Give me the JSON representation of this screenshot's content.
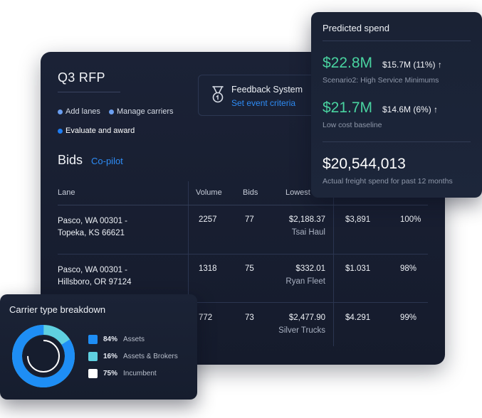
{
  "rfp": {
    "title": "Q3 RFP",
    "steps": [
      "Add lanes",
      "Manage carriers",
      "Evaluate and award"
    ]
  },
  "feedback": {
    "title": "Feedback System",
    "link": "Set event criteria",
    "icon": "medal-icon"
  },
  "bids": {
    "title": "Bids",
    "copilot": "Co-pilot",
    "columns": [
      "Lane",
      "Volume",
      "Bids",
      "Lowest"
    ],
    "rows": [
      {
        "lane1": "Pasco, WA 00301 -",
        "lane2": "Topeka, KS 66621",
        "volume": "2257",
        "bids": "77",
        "lowest": "$2,188.37",
        "carrier": "Tsai Haul",
        "price": "$3,891",
        "pct": "100%"
      },
      {
        "lane1": "Pasco, WA 00301 -",
        "lane2": "Hillsboro, OR 97124",
        "volume": "1318",
        "bids": "75",
        "lowest": "$332.01",
        "carrier": "Ryan Fleet",
        "price": "$1.031",
        "pct": "98%"
      },
      {
        "lane1": "",
        "lane2": "",
        "volume": "772",
        "bids": "73",
        "lowest": "$2,477.90",
        "carrier": "Silver Trucks",
        "price": "$4.291",
        "pct": "99%"
      }
    ]
  },
  "spend": {
    "title": "Predicted spend",
    "scenario1": {
      "value": "$22.8M",
      "delta": "$15.7M (11%) ↑",
      "label": "Scenario2: High Service Minimums"
    },
    "scenario2": {
      "value": "$21.7M",
      "delta": "$14.6M (6%) ↑",
      "label": "Low cost baseline"
    },
    "actual": {
      "value": "$20,544,013",
      "label": "Actual freight spend for past 12 months"
    }
  },
  "carrier_breakdown": {
    "title": "Carrier type breakdown",
    "legend": [
      {
        "pct": "84%",
        "label": "Assets",
        "color": "#1e8ef5"
      },
      {
        "pct": "16%",
        "label": "Assets & Brokers",
        "color": "#5fd0e0"
      },
      {
        "pct": "75%",
        "label": "Incumbent",
        "color": "#ffffff"
      }
    ],
    "donut": {
      "assets_fraction": 0.84,
      "incumbent_fraction": 0.75
    }
  },
  "colors": {
    "accent": "#2e8cf5",
    "positive": "#49d3a0"
  }
}
